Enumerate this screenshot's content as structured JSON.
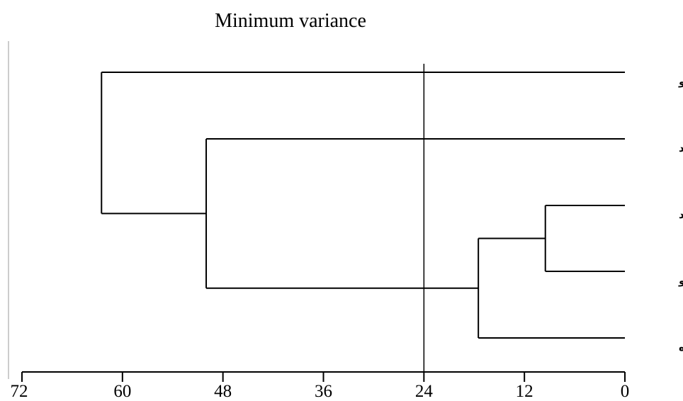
{
  "chart_data": {
    "type": "dendrogram",
    "title": "Minimum variance",
    "xlabel": "",
    "ylabel": "",
    "xlim": [
      72,
      0
    ],
    "x_ticks": [
      72,
      60,
      48,
      36,
      24,
      12,
      0
    ],
    "leaves": [
      "میشو",
      "سهند",
      "یوزبند",
      "ایگده‌لو",
      "کرده‌ده"
    ],
    "merges": [
      {
        "children": [
          "یوزبند",
          "ایگده‌لو"
        ],
        "height": 9.5
      },
      {
        "children": [
          "(یوزبند+ایگده‌لو)",
          "کرده‌ده"
        ],
        "height": 17.5
      },
      {
        "children": [
          "سهند",
          "(یوزبند+ایگده‌لو+کرده‌ده)"
        ],
        "height": 50
      },
      {
        "children": [
          "میشو",
          "(rest)"
        ],
        "height": 62.5
      }
    ],
    "cut_line": 24,
    "grid": false
  }
}
